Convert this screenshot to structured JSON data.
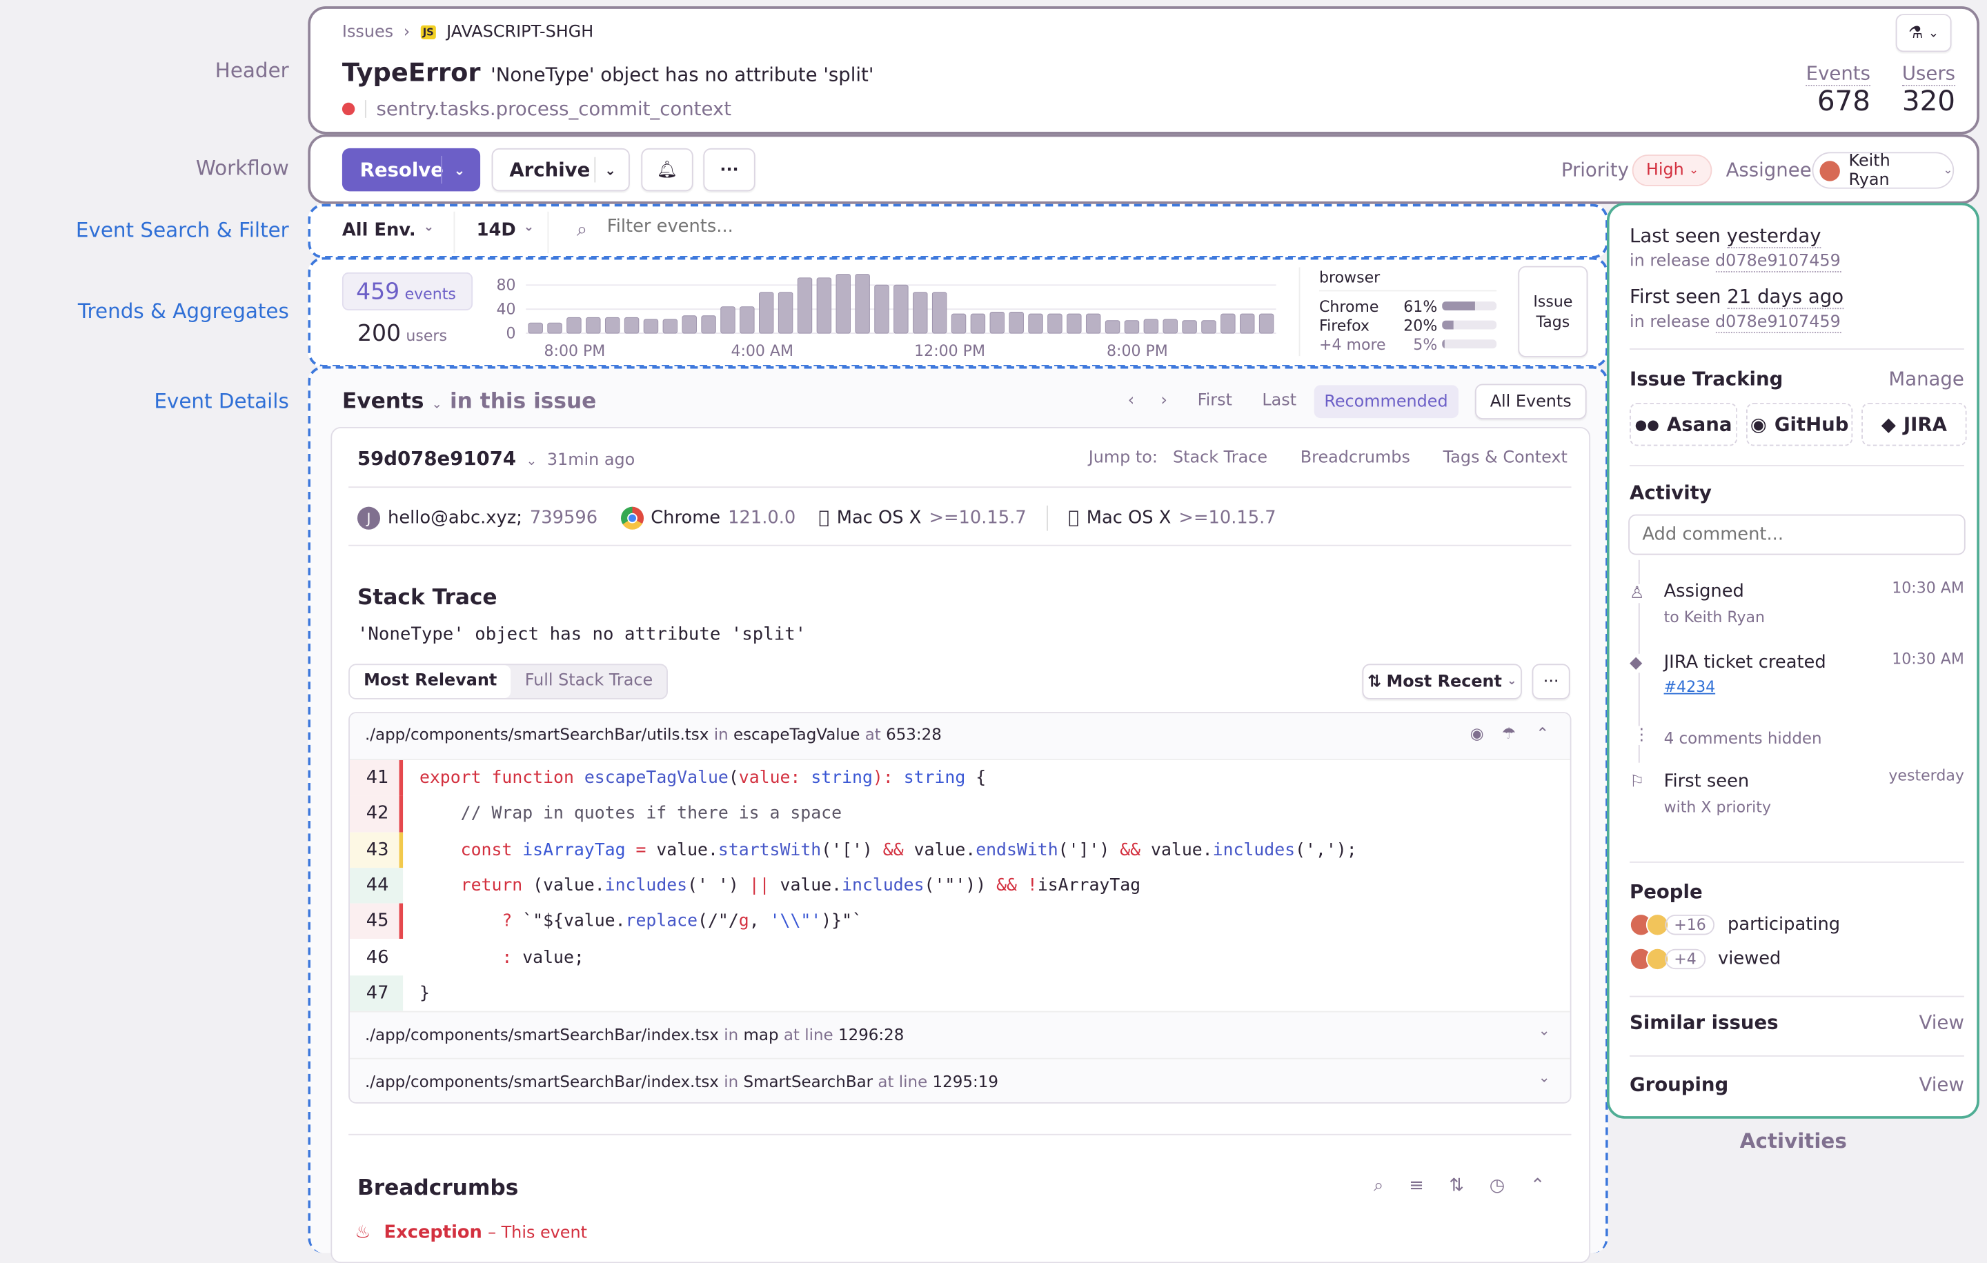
{
  "annotations": {
    "header": "Header",
    "workflow": "Workflow",
    "search": "Event Search & Filter",
    "trends": "Trends & Aggregates",
    "details": "Event Details",
    "activities": "Activities"
  },
  "colors": {
    "accent": "#6c5fc7",
    "annotation_blue": "#2f6fd6",
    "panel_green": "#4fad94",
    "error": "#e5484d"
  },
  "header": {
    "breadcrumb": [
      "Issues",
      "JAVASCRIPT-SHGH"
    ],
    "platform_badge": "JS",
    "error_type": "TypeError",
    "error_message": "'NoneType' object has no attribute 'split'",
    "culprit": "sentry.tasks.process_commit_context",
    "stats": [
      {
        "label": "Events",
        "value": "678"
      },
      {
        "label": "Users",
        "value": "320"
      }
    ]
  },
  "workflow": {
    "resolve": "Resolve",
    "archive": "Archive",
    "more": "···",
    "priority_label": "Priority",
    "priority_value": "High",
    "assignee_label": "Assignee",
    "assignee_value": "Keith Ryan"
  },
  "filters": {
    "environment": "All Env.",
    "period": "14D",
    "search_placeholder": "Filter events..."
  },
  "trends": {
    "events_count": "459",
    "events_label": "events",
    "users_count": "200",
    "users_label": "users",
    "tag_title": "browser",
    "tags": [
      {
        "name": "Chrome",
        "pct": "61%",
        "value": 61
      },
      {
        "name": "Firefox",
        "pct": "20%",
        "value": 20
      },
      {
        "name": "+4 more",
        "pct": "5%",
        "value": 5
      }
    ],
    "issue_tags_button": "Issue Tags"
  },
  "chart_data": {
    "type": "bar",
    "y_ticks": [
      "80",
      "40",
      "0"
    ],
    "ylim": [
      0,
      80
    ],
    "x_ticks": [
      "8:00 PM",
      "4:00 AM",
      "12:00 PM",
      "8:00 PM"
    ],
    "values": [
      17,
      17,
      26,
      26,
      26,
      26,
      23,
      23,
      29,
      29,
      44,
      44,
      68,
      68,
      92,
      92,
      98,
      98,
      80,
      80,
      68,
      68,
      32,
      32,
      35,
      35,
      32,
      32,
      32,
      32,
      21,
      21,
      23,
      23,
      21,
      21,
      32,
      32,
      32
    ],
    "grid": true
  },
  "events": {
    "title": "Events",
    "subtitle": "in this issue",
    "nav": {
      "first": "First",
      "last": "Last",
      "recommended": "Recommended",
      "all_events": "All Events"
    },
    "event_id": "59d078e91074",
    "age": "31min ago",
    "jump_to": "Jump to:",
    "jump_links": [
      "Stack Trace",
      "Breadcrumbs",
      "Tags & Context"
    ],
    "context": {
      "user_initial": "J",
      "user": "hello@abc.xyz;",
      "user_id": "739596",
      "browser": "Chrome",
      "browser_version": "121.0.0",
      "os1": "Mac OS X",
      "os1_version": ">=10.15.7",
      "os2": "Mac OS X",
      "os2_version": ">=10.15.7"
    }
  },
  "stack": {
    "title": "Stack Trace",
    "message": "'NoneType' object has no attribute 'split'",
    "tabs": [
      "Most Relevant",
      "Full Stack Trace"
    ],
    "sort": "Most Recent",
    "frames": [
      {
        "file": "./app/components/smartSearchBar/utils.tsx",
        "in": "in",
        "fn": "escapeTagValue",
        "at": "at",
        "loc": "653:28"
      },
      {
        "file": "./app/components/smartSearchBar/index.tsx",
        "in": "in",
        "fn": "map",
        "at": "at line",
        "loc": "1296:28"
      },
      {
        "file": "./app/components/smartSearchBar/index.tsx",
        "in": "in",
        "fn": "SmartSearchBar",
        "at": "at line",
        "loc": "1295:19"
      }
    ],
    "code": [
      {
        "n": "41",
        "mark": "red",
        "tokens": [
          [
            "export ",
            "kw"
          ],
          [
            "function ",
            "kw"
          ],
          [
            "escapeTagValue",
            "fn"
          ],
          [
            "(",
            "tx"
          ],
          [
            "value: ",
            "kw"
          ],
          [
            "string",
            "ty"
          ],
          [
            "): ",
            "kw"
          ],
          [
            "string",
            "ty"
          ],
          [
            " {",
            "tx"
          ]
        ]
      },
      {
        "n": "42",
        "mark": "red",
        "tokens": [
          [
            "    // Wrap in quotes if there is a space",
            "cm"
          ]
        ]
      },
      {
        "n": "43",
        "mark": "yellow",
        "tokens": [
          [
            "    const ",
            "kw"
          ],
          [
            "isArrayTag",
            "ty"
          ],
          [
            " = ",
            "kw"
          ],
          [
            "value.",
            "tx"
          ],
          [
            "startsWith",
            "fn"
          ],
          [
            "('[') ",
            "tx"
          ],
          [
            "&&",
            "kw"
          ],
          [
            " value.",
            "tx"
          ],
          [
            "endsWith",
            "fn"
          ],
          [
            "(']') ",
            "tx"
          ],
          [
            "&&",
            "kw"
          ],
          [
            " value.",
            "tx"
          ],
          [
            "includes",
            "fn"
          ],
          [
            "(',');",
            "tx"
          ]
        ]
      },
      {
        "n": "44",
        "mark": "green",
        "tokens": [
          [
            "    return ",
            "kw"
          ],
          [
            "(value.",
            "tx"
          ],
          [
            "includes",
            "fn"
          ],
          [
            "(' ') ",
            "tx"
          ],
          [
            "||",
            "kw"
          ],
          [
            " value.",
            "tx"
          ],
          [
            "includes",
            "fn"
          ],
          [
            "('\"')) ",
            "tx"
          ],
          [
            "&&",
            "kw"
          ],
          [
            " !",
            "kw"
          ],
          [
            "isArrayTag",
            "tx"
          ]
        ]
      },
      {
        "n": "45",
        "mark": "red",
        "tokens": [
          [
            "        ? ",
            "kw"
          ],
          [
            "`\"${value.",
            "tx"
          ],
          [
            "replace",
            "fn"
          ],
          [
            "(/\"/",
            "tx"
          ],
          [
            "g",
            "kw"
          ],
          [
            ", ",
            "tx"
          ],
          [
            "'\\\\\"'",
            "ty"
          ],
          [
            ")}\"`",
            "tx"
          ]
        ]
      },
      {
        "n": "46",
        "mark": "none",
        "tokens": [
          [
            "        : ",
            "kw"
          ],
          [
            "value;",
            "tx"
          ]
        ]
      },
      {
        "n": "47",
        "mark": "green",
        "tokens": [
          [
            "}",
            "tx"
          ]
        ]
      }
    ]
  },
  "breadcrumbs": {
    "title": "Breadcrumbs",
    "first_type": "Exception",
    "first_desc": "– This event"
  },
  "sidebar": {
    "last_seen_label": "Last seen",
    "last_seen": "yesterday",
    "release_label": "in release",
    "release": "d078e9107459",
    "first_seen_label": "First seen",
    "first_seen": "21 days ago",
    "first_release": "d078e9107459",
    "issue_tracking": "Issue Tracking",
    "manage": "Manage",
    "integrations": [
      "Asana",
      "GitHub",
      "JIRA"
    ],
    "activity": "Activity",
    "comment_placeholder": "Add comment...",
    "activity_items": [
      {
        "title": "Assigned",
        "sub": "to Keith Ryan",
        "time": "10:30 AM",
        "icon": "user-icon"
      },
      {
        "title": "JIRA ticket created",
        "sub": "#4234",
        "time": "10:30 AM",
        "icon": "jira-icon"
      },
      {
        "title": "4 comments hidden",
        "icon": "ellipsis-vertical-icon"
      },
      {
        "title": "First seen",
        "sub": "with X priority",
        "time": "yesterday",
        "icon": "flag-icon"
      }
    ],
    "people": "People",
    "participating_count": "+16",
    "participating": "participating",
    "viewed_count": "+4",
    "viewed": "viewed",
    "similar": "Similar issues",
    "grouping": "Grouping",
    "view": "View"
  }
}
